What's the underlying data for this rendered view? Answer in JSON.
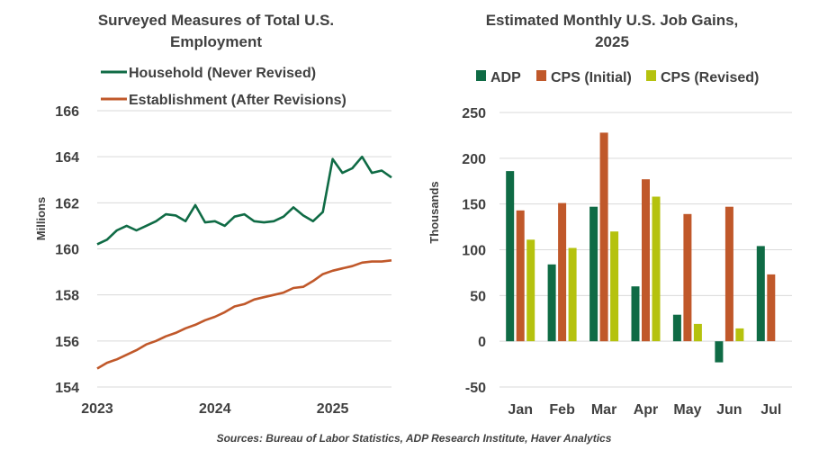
{
  "colors": {
    "household": "#0f6b45",
    "establishment": "#c0582a",
    "adp": "#0f6b45",
    "cps_initial": "#c0582a",
    "cps_revised": "#b5c20e",
    "text": "#404040"
  },
  "source": "Sources: Bureau of Labor Statistics, ADP Research Institute, Haver Analytics",
  "chart_data": [
    {
      "type": "line",
      "title": "Surveyed Measures of Total U.S. Employment",
      "title_lines": [
        "Surveyed Measures of Total U.S.",
        "Employment"
      ],
      "ylabel": "Millions",
      "ylim": [
        154,
        166
      ],
      "yticks": [
        154,
        156,
        158,
        160,
        162,
        164,
        166
      ],
      "xlim": [
        2023.0,
        2025.5
      ],
      "xticks": [
        {
          "value": 2023,
          "label": "2023"
        },
        {
          "value": 2024,
          "label": "2024"
        },
        {
          "value": 2025,
          "label": "2025"
        }
      ],
      "series": [
        {
          "name": "Household (Never Revised)",
          "color_key": "household",
          "values": [
            160.2,
            160.4,
            160.8,
            161.0,
            160.8,
            161.0,
            161.2,
            161.5,
            161.45,
            161.2,
            161.9,
            161.15,
            161.2,
            161.0,
            161.4,
            161.5,
            161.2,
            161.15,
            161.2,
            161.4,
            161.8,
            161.45,
            161.2,
            161.6,
            163.9,
            163.3,
            163.5,
            164.0,
            163.3,
            163.4,
            163.1
          ]
        },
        {
          "name": "Establishment (After Revisions)",
          "color_key": "establishment",
          "values": [
            154.8,
            155.05,
            155.2,
            155.4,
            155.6,
            155.85,
            156.0,
            156.2,
            156.35,
            156.55,
            156.7,
            156.9,
            157.05,
            157.25,
            157.5,
            157.6,
            157.8,
            157.9,
            158.0,
            158.1,
            158.3,
            158.35,
            158.6,
            158.9,
            159.05,
            159.15,
            159.25,
            159.4,
            159.45,
            159.45,
            159.5
          ]
        }
      ]
    },
    {
      "type": "bar",
      "title": "Estimated Monthly U.S. Job Gains, 2025",
      "title_lines": [
        "Estimated Monthly U.S. Job Gains,",
        "2025"
      ],
      "ylabel": "Thousands",
      "ylim": [
        -50,
        250
      ],
      "yticks": [
        -50,
        0,
        50,
        100,
        150,
        200,
        250
      ],
      "categories": [
        "Jan",
        "Feb",
        "Mar",
        "Apr",
        "May",
        "Jun",
        "Jul"
      ],
      "series": [
        {
          "name": "ADP",
          "color_key": "adp",
          "values": [
            186,
            84,
            147,
            60,
            29,
            -23,
            104
          ]
        },
        {
          "name": "CPS (Initial)",
          "color_key": "cps_initial",
          "values": [
            143,
            151,
            228,
            177,
            139,
            147,
            73
          ]
        },
        {
          "name": "CPS (Revised)",
          "color_key": "cps_revised",
          "values": [
            111,
            102,
            120,
            158,
            19,
            14,
            null
          ]
        }
      ]
    }
  ]
}
